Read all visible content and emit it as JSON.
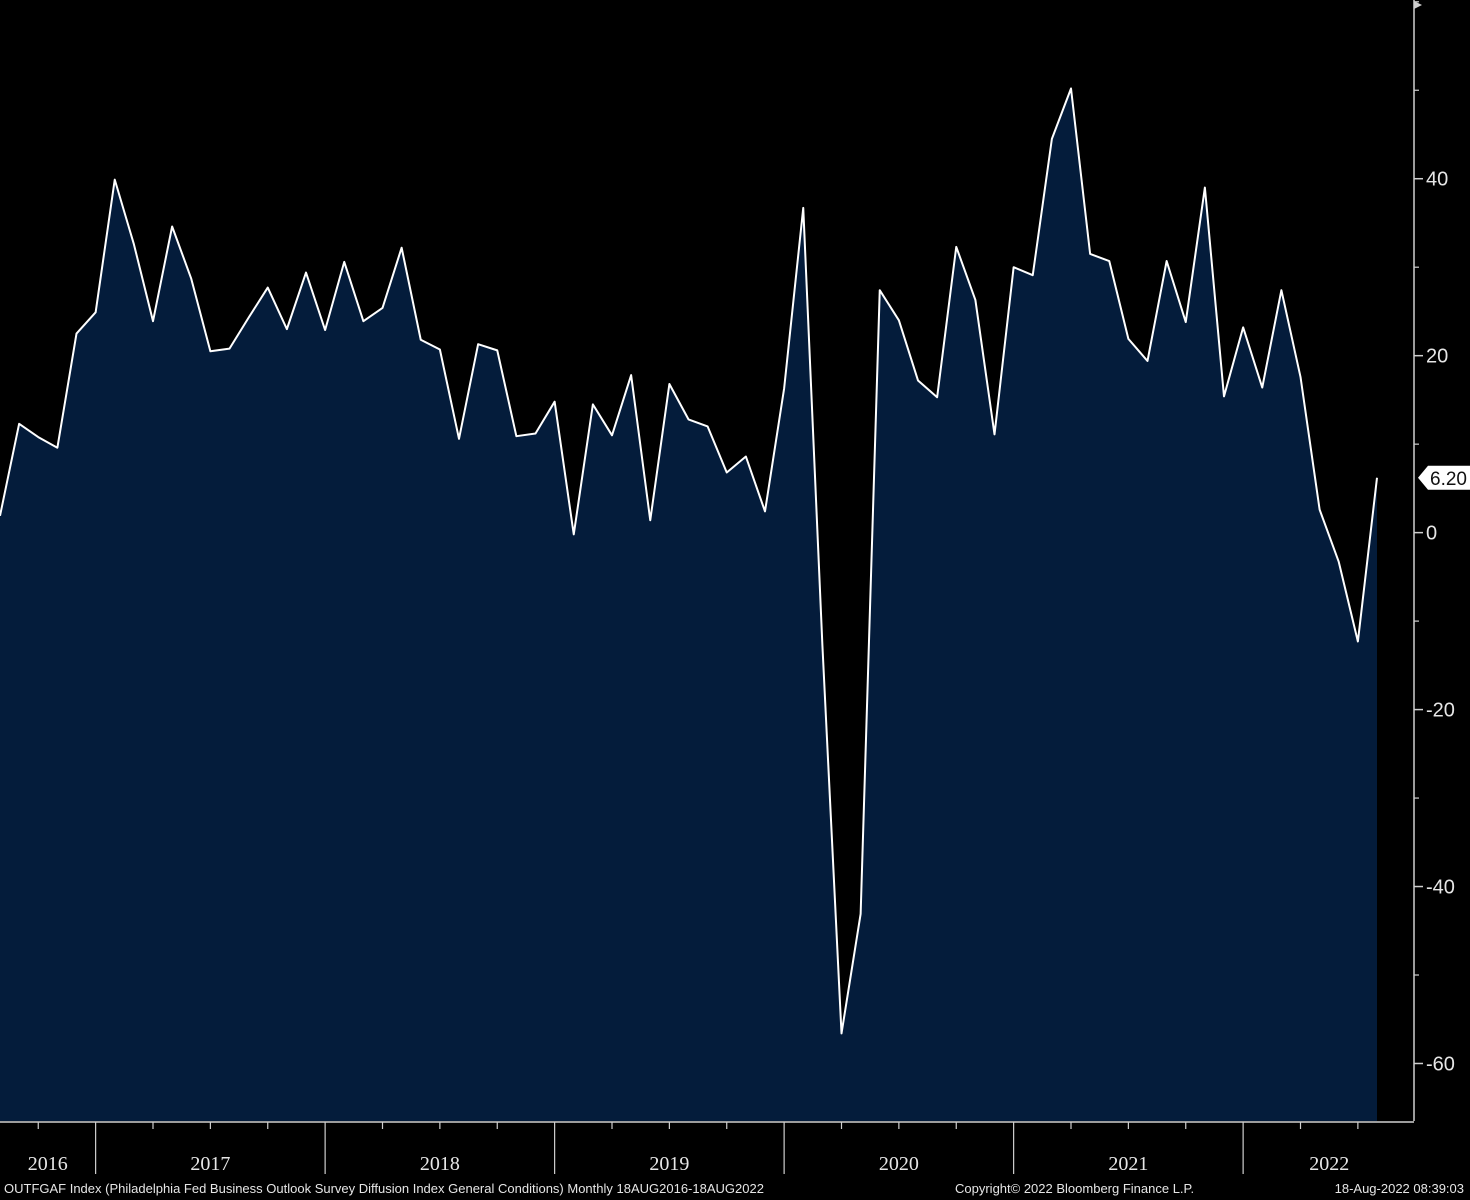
{
  "chart_data": {
    "type": "area",
    "start": "2016-08",
    "frequency": "monthly",
    "values": [
      1.9,
      12.3,
      10.8,
      9.6,
      22.5,
      24.9,
      39.9,
      32.6,
      23.9,
      34.6,
      28.7,
      20.5,
      20.8,
      24.3,
      27.7,
      23.0,
      29.4,
      22.9,
      30.6,
      23.9,
      25.4,
      32.2,
      21.8,
      20.7,
      10.6,
      21.3,
      20.6,
      10.9,
      11.2,
      14.8,
      -0.2,
      14.5,
      11.0,
      17.8,
      1.4,
      16.8,
      12.8,
      12.0,
      6.8,
      8.6,
      2.4,
      16.3,
      36.7,
      -12.7,
      -56.6,
      -43.1,
      27.4,
      24.0,
      17.2,
      15.3,
      32.3,
      26.3,
      11.1,
      30.0,
      29.1,
      44.5,
      50.2,
      31.5,
      30.7,
      21.9,
      19.4,
      30.7,
      23.8,
      39.0,
      15.4,
      23.2,
      16.4,
      27.4,
      17.6,
      2.6,
      -3.3,
      -12.3,
      6.2
    ],
    "x_tick_labels": [
      "2016",
      "2017",
      "2018",
      "2019",
      "2020",
      "2021",
      "2022"
    ],
    "y_tick_labels": [
      "40",
      "20",
      "0",
      "-20",
      "-40",
      "-60"
    ],
    "y_ticks": [
      40,
      20,
      0,
      -20,
      -40,
      -60
    ],
    "ylim": [
      -66.5,
      60.2
    ],
    "grid": false,
    "last_value_label": "6.20",
    "colors": {
      "fill": "#041c3b",
      "line": "#ffffff",
      "background": "#000000",
      "axis": "#cfcfcf"
    }
  },
  "footer": {
    "description": "OUTFGAF Index (Philadelphia Fed Business Outlook Survey Diffusion Index General Conditions)  Monthly 18AUG2016-18AUG2022",
    "copyright": "Copyright© 2022 Bloomberg Finance L.P.",
    "timestamp": "18-Aug-2022 08:39:03"
  }
}
